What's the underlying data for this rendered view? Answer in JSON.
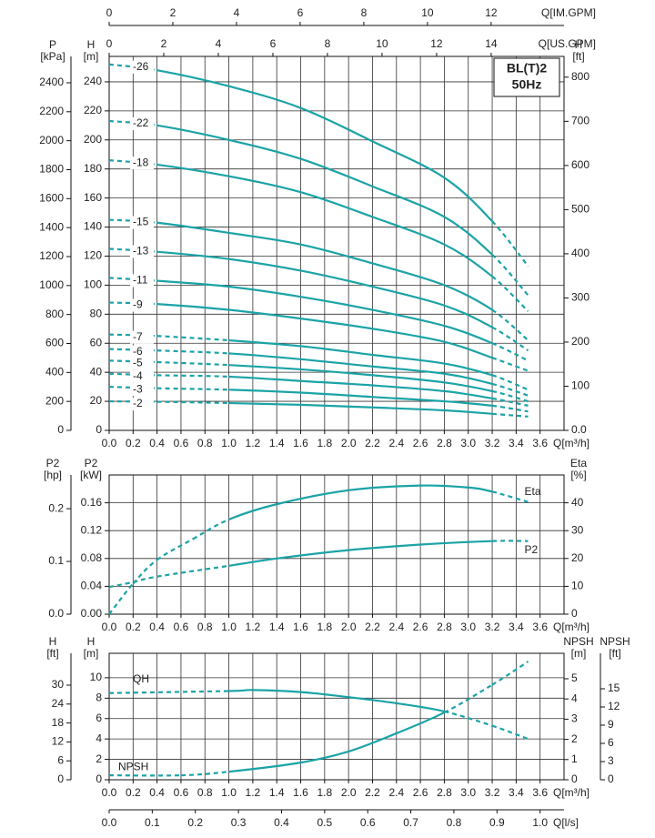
{
  "chart_data": [
    {
      "type": "line",
      "label_box": [
        "BL(T)2",
        "50Hz"
      ],
      "grid": true,
      "grid_axis": 1,
      "bottom_axes": [
        {
          "label": "Q[m³/h]",
          "xlim": [
            0,
            3.8
          ],
          "xticks": [
            {
              "value": 0,
              "label": "0.0"
            },
            0.2,
            0.4,
            0.6,
            0.8,
            {
              "value": 1,
              "label": "1.0"
            },
            1.2,
            1.4,
            1.6,
            1.8,
            {
              "value": 2,
              "label": "2.0"
            },
            2.2,
            2.4,
            2.6,
            2.8,
            {
              "value": 3,
              "label": "3.0"
            },
            3.2,
            3.4,
            3.6
          ]
        }
      ],
      "top_axes": [
        {
          "label": "Q[IM.GPM]",
          "xlim": [
            0,
            14.29
          ],
          "xticks": [
            0,
            2,
            4,
            6,
            8,
            10,
            12
          ]
        },
        {
          "label": "Q[US.GPM]",
          "xlim": [
            0,
            16.67
          ],
          "xticks": [
            0,
            2,
            4,
            6,
            8,
            10,
            12,
            14
          ]
        }
      ],
      "y_axes": [
        {
          "label": [
            "P",
            "[kPa]"
          ],
          "side": "left",
          "ylim": [
            0,
            2582
          ],
          "yticks": [
            0,
            200,
            400,
            600,
            800,
            1000,
            1200,
            1400,
            1600,
            1800,
            2000,
            2200,
            2400
          ]
        },
        {
          "label": [
            "H",
            "[m]"
          ],
          "side": "left",
          "ylim": [
            0,
            257.5
          ],
          "yticks": [
            0,
            20,
            40,
            60,
            80,
            100,
            120,
            140,
            160,
            180,
            200,
            220,
            240
          ]
        },
        {
          "label": [
            "H",
            "[ft]"
          ],
          "side": "right",
          "ylim": [
            0,
            847
          ],
          "yticks": [
            {
              "value": 0,
              "label": "0.0"
            },
            100,
            200,
            300,
            400,
            500,
            600,
            700,
            800
          ]
        }
      ],
      "x": [
        0,
        0.4,
        1.0,
        1.6,
        2.2,
        2.8,
        3.2,
        3.5
      ],
      "series": [
        {
          "name": "-26",
          "color": "#1ba3a6",
          "axis": 1,
          "solid_xlim": [
            0.4,
            3.2
          ],
          "values": [
            252,
            248,
            237,
            222,
            199,
            174,
            144,
            113
          ]
        },
        {
          "name": "-22",
          "color": "#1ba3a6",
          "axis": 1,
          "solid_xlim": [
            0.4,
            3.2
          ],
          "values": [
            213,
            210,
            200,
            187,
            168,
            147,
            121,
            93
          ]
        },
        {
          "name": "-18",
          "color": "#1ba3a6",
          "axis": 1,
          "solid_xlim": [
            0.4,
            3.2
          ],
          "values": [
            186,
            183,
            175,
            164,
            147,
            128,
            106,
            82
          ]
        },
        {
          "name": "-15",
          "color": "#1ba3a6",
          "axis": 1,
          "solid_xlim": [
            0.4,
            3.2
          ],
          "values": [
            145,
            143,
            136,
            128,
            115,
            100,
            83,
            62
          ]
        },
        {
          "name": "-13",
          "color": "#1ba3a6",
          "axis": 1,
          "solid_xlim": [
            0.4,
            3.2
          ],
          "values": [
            125,
            123,
            118,
            110,
            99,
            86,
            71,
            55
          ]
        },
        {
          "name": "-11",
          "color": "#1ba3a6",
          "axis": 1,
          "solid_xlim": [
            0.4,
            3.2
          ],
          "values": [
            105,
            103,
            99,
            92,
            83,
            72,
            60,
            48
          ]
        },
        {
          "name": "-9",
          "color": "#1ba3a6",
          "axis": 1,
          "solid_xlim": [
            0.4,
            3.2
          ],
          "values": [
            88,
            87,
            83,
            77,
            70,
            61,
            50,
            41
          ]
        },
        {
          "name": "-7",
          "color": "#1ba3a6",
          "axis": 1,
          "solid_xlim": [
            1.0,
            3.2
          ],
          "values": [
            66,
            65,
            62,
            58,
            52,
            46,
            38,
            28
          ]
        },
        {
          "name": "-6",
          "color": "#1ba3a6",
          "axis": 1,
          "solid_xlim": [
            1.0,
            3.2
          ],
          "values": [
            56,
            55,
            53,
            49,
            44,
            39,
            32,
            24
          ]
        },
        {
          "name": "-5",
          "color": "#1ba3a6",
          "axis": 1,
          "solid_xlim": [
            1.0,
            3.2
          ],
          "values": [
            48,
            47,
            45,
            42,
            38,
            33,
            27,
            20
          ]
        },
        {
          "name": "-4",
          "color": "#1ba3a6",
          "axis": 1,
          "solid_xlim": [
            1.0,
            3.2
          ],
          "values": [
            39,
            38,
            37,
            34,
            31,
            27,
            22,
            17
          ]
        },
        {
          "name": "-3",
          "color": "#1ba3a6",
          "axis": 1,
          "solid_xlim": [
            1.0,
            3.2
          ],
          "values": [
            30,
            29,
            28,
            26,
            23,
            20,
            17,
            13
          ]
        },
        {
          "name": "-2",
          "color": "#1ba3a6",
          "axis": 1,
          "solid_xlim": [
            1.0,
            3.2
          ],
          "values": [
            20,
            19.7,
            18.8,
            17.6,
            15.8,
            13.8,
            11.4,
            9.5
          ]
        }
      ]
    },
    {
      "type": "line",
      "grid": true,
      "grid_axis": 1,
      "bottom_axes": [
        {
          "label": "Q[m³/h]",
          "xlim": [
            0,
            3.8
          ],
          "xticks": [
            {
              "value": 0,
              "label": "0.0"
            },
            0.2,
            0.4,
            0.6,
            0.8,
            {
              "value": 1,
              "label": "1.0"
            },
            1.2,
            1.4,
            1.6,
            1.8,
            {
              "value": 2,
              "label": "2.0"
            },
            2.2,
            2.4,
            2.6,
            2.8,
            {
              "value": 3,
              "label": "3.0"
            },
            3.2,
            3.4,
            3.6
          ]
        }
      ],
      "y_axes": [
        {
          "label": [
            "P2",
            "[hp]"
          ],
          "side": "left",
          "ylim": [
            0,
            0.264
          ],
          "yticks": [
            {
              "value": 0,
              "label": "0.0"
            },
            0.1,
            0.2
          ]
        },
        {
          "label": [
            "P2",
            "[kW]"
          ],
          "side": "left",
          "ylim": [
            0,
            0.2
          ],
          "yticks": [
            {
              "value": 0,
              "label": "0.00"
            },
            0.04,
            0.08,
            0.12,
            0.16
          ]
        },
        {
          "label": [
            "Eta",
            "[%]"
          ],
          "side": "right",
          "ylim": [
            0,
            50
          ],
          "yticks": [
            0,
            10,
            20,
            30,
            40
          ]
        }
      ],
      "series": [
        {
          "name": "Eta",
          "color": "#1ba3a6",
          "axis": 2,
          "solid_xlim": [
            1.0,
            3.2
          ],
          "x": [
            0,
            0.2,
            0.4,
            0.7,
            1.0,
            1.4,
            2.0,
            2.6,
            3.0,
            3.2,
            3.5
          ],
          "values": [
            0,
            11,
            19.5,
            27,
            34,
            39.5,
            44.5,
            46.2,
            45.5,
            44,
            40.3
          ]
        },
        {
          "name": "P2",
          "color": "#1ba3a6",
          "axis": 1,
          "solid_xlim": [
            1.0,
            3.2
          ],
          "x": [
            0,
            0.2,
            0.4,
            1.0,
            1.4,
            2.0,
            2.6,
            3.2,
            3.5
          ],
          "values": [
            0.039,
            0.046,
            0.054,
            0.0695,
            0.08,
            0.092,
            0.1,
            0.105,
            0.105
          ]
        }
      ]
    },
    {
      "type": "line",
      "grid": true,
      "grid_axis": 1,
      "bottom_axes": [
        {
          "label": "Q[m³/h]",
          "xlim": [
            0,
            3.8
          ],
          "xticks": [
            {
              "value": 0,
              "label": "0.0"
            },
            0.2,
            0.4,
            0.6,
            0.8,
            {
              "value": 1,
              "label": "1.0"
            },
            1.2,
            1.4,
            1.6,
            1.8,
            {
              "value": 2,
              "label": "2.0"
            },
            2.2,
            2.4,
            2.6,
            2.8,
            {
              "value": 3,
              "label": "3.0"
            },
            3.2,
            3.4,
            3.6
          ]
        },
        {
          "label": "Q[l/s]",
          "xlim": [
            0,
            1.0556
          ],
          "xticks": [
            {
              "value": 0,
              "label": "0.0"
            },
            0.1,
            0.2,
            0.3,
            0.4,
            0.5,
            0.6,
            0.7,
            0.8,
            0.9,
            {
              "value": 1,
              "label": "1.0"
            }
          ]
        }
      ],
      "y_axes": [
        {
          "label": [
            "H",
            "[ft]"
          ],
          "side": "left",
          "ylim": [
            0,
            40.1
          ],
          "yticks": [
            0,
            6,
            12,
            18,
            24,
            30
          ]
        },
        {
          "label": [
            "H",
            "[m]"
          ],
          "side": "left",
          "ylim": [
            0,
            12.4
          ],
          "yticks": [
            0,
            2,
            4,
            6,
            8,
            10
          ]
        },
        {
          "label": [
            "NPSH",
            "[m]"
          ],
          "side": "right",
          "ylim": [
            0,
            6.26
          ],
          "yticks": [
            0,
            1,
            2,
            3,
            4,
            5
          ]
        },
        {
          "label": [
            "NPSH",
            "[ft]"
          ],
          "side": "right",
          "ylim": [
            0,
            20.85
          ],
          "yticks": [
            0,
            3,
            6,
            9,
            12,
            15
          ]
        }
      ],
      "series": [
        {
          "name": "QH",
          "color": "#1ba3a6",
          "axis": 1,
          "solid_xlim": [
            1.0,
            2.8
          ],
          "x": [
            0,
            1.0,
            1.2,
            1.6,
            2.0,
            2.4,
            2.8,
            3.2,
            3.5
          ],
          "values": [
            8.5,
            8.7,
            8.8,
            8.6,
            8.1,
            7.5,
            6.7,
            5.3,
            4.0
          ]
        },
        {
          "name": "NPSH",
          "color": "#1ba3a6",
          "axis": 2,
          "solid_xlim": [
            1.0,
            3.0
          ],
          "x": [
            0,
            0.6,
            1.0,
            1.6,
            2.0,
            2.4,
            2.8,
            3.2,
            3.5
          ],
          "values": [
            0.22,
            0.22,
            0.4,
            0.85,
            1.4,
            2.3,
            3.33,
            4.7,
            5.85
          ]
        }
      ]
    }
  ]
}
